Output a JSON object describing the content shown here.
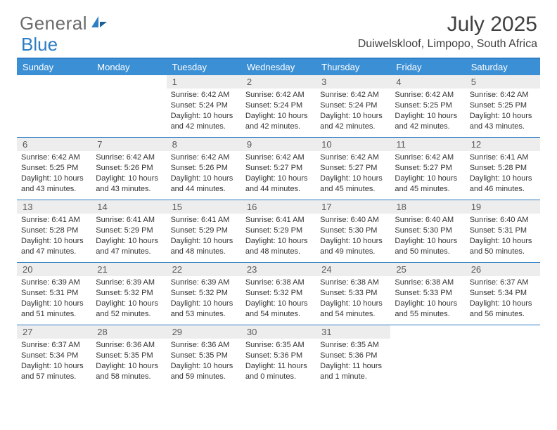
{
  "logo": {
    "text_gray": "General",
    "text_blue": "Blue"
  },
  "title": "July 2025",
  "location": "Duiwelskloof, Limpopo, South Africa",
  "colors": {
    "header_bar": "#3b8fd4",
    "border": "#2d7ec4",
    "daynum_bg": "#ededed",
    "text": "#333333",
    "title_text": "#404040"
  },
  "day_headers": [
    "Sunday",
    "Monday",
    "Tuesday",
    "Wednesday",
    "Thursday",
    "Friday",
    "Saturday"
  ],
  "weeks": [
    [
      {
        "n": "",
        "empty": true
      },
      {
        "n": "",
        "empty": true
      },
      {
        "n": "1",
        "sunrise": "6:42 AM",
        "sunset": "5:24 PM",
        "daylight": "10 hours and 42 minutes."
      },
      {
        "n": "2",
        "sunrise": "6:42 AM",
        "sunset": "5:24 PM",
        "daylight": "10 hours and 42 minutes."
      },
      {
        "n": "3",
        "sunrise": "6:42 AM",
        "sunset": "5:24 PM",
        "daylight": "10 hours and 42 minutes."
      },
      {
        "n": "4",
        "sunrise": "6:42 AM",
        "sunset": "5:25 PM",
        "daylight": "10 hours and 42 minutes."
      },
      {
        "n": "5",
        "sunrise": "6:42 AM",
        "sunset": "5:25 PM",
        "daylight": "10 hours and 43 minutes."
      }
    ],
    [
      {
        "n": "6",
        "sunrise": "6:42 AM",
        "sunset": "5:25 PM",
        "daylight": "10 hours and 43 minutes."
      },
      {
        "n": "7",
        "sunrise": "6:42 AM",
        "sunset": "5:26 PM",
        "daylight": "10 hours and 43 minutes."
      },
      {
        "n": "8",
        "sunrise": "6:42 AM",
        "sunset": "5:26 PM",
        "daylight": "10 hours and 44 minutes."
      },
      {
        "n": "9",
        "sunrise": "6:42 AM",
        "sunset": "5:27 PM",
        "daylight": "10 hours and 44 minutes."
      },
      {
        "n": "10",
        "sunrise": "6:42 AM",
        "sunset": "5:27 PM",
        "daylight": "10 hours and 45 minutes."
      },
      {
        "n": "11",
        "sunrise": "6:42 AM",
        "sunset": "5:27 PM",
        "daylight": "10 hours and 45 minutes."
      },
      {
        "n": "12",
        "sunrise": "6:41 AM",
        "sunset": "5:28 PM",
        "daylight": "10 hours and 46 minutes."
      }
    ],
    [
      {
        "n": "13",
        "sunrise": "6:41 AM",
        "sunset": "5:28 PM",
        "daylight": "10 hours and 47 minutes."
      },
      {
        "n": "14",
        "sunrise": "6:41 AM",
        "sunset": "5:29 PM",
        "daylight": "10 hours and 47 minutes."
      },
      {
        "n": "15",
        "sunrise": "6:41 AM",
        "sunset": "5:29 PM",
        "daylight": "10 hours and 48 minutes."
      },
      {
        "n": "16",
        "sunrise": "6:41 AM",
        "sunset": "5:29 PM",
        "daylight": "10 hours and 48 minutes."
      },
      {
        "n": "17",
        "sunrise": "6:40 AM",
        "sunset": "5:30 PM",
        "daylight": "10 hours and 49 minutes."
      },
      {
        "n": "18",
        "sunrise": "6:40 AM",
        "sunset": "5:30 PM",
        "daylight": "10 hours and 50 minutes."
      },
      {
        "n": "19",
        "sunrise": "6:40 AM",
        "sunset": "5:31 PM",
        "daylight": "10 hours and 50 minutes."
      }
    ],
    [
      {
        "n": "20",
        "sunrise": "6:39 AM",
        "sunset": "5:31 PM",
        "daylight": "10 hours and 51 minutes."
      },
      {
        "n": "21",
        "sunrise": "6:39 AM",
        "sunset": "5:32 PM",
        "daylight": "10 hours and 52 minutes."
      },
      {
        "n": "22",
        "sunrise": "6:39 AM",
        "sunset": "5:32 PM",
        "daylight": "10 hours and 53 minutes."
      },
      {
        "n": "23",
        "sunrise": "6:38 AM",
        "sunset": "5:32 PM",
        "daylight": "10 hours and 54 minutes."
      },
      {
        "n": "24",
        "sunrise": "6:38 AM",
        "sunset": "5:33 PM",
        "daylight": "10 hours and 54 minutes."
      },
      {
        "n": "25",
        "sunrise": "6:38 AM",
        "sunset": "5:33 PM",
        "daylight": "10 hours and 55 minutes."
      },
      {
        "n": "26",
        "sunrise": "6:37 AM",
        "sunset": "5:34 PM",
        "daylight": "10 hours and 56 minutes."
      }
    ],
    [
      {
        "n": "27",
        "sunrise": "6:37 AM",
        "sunset": "5:34 PM",
        "daylight": "10 hours and 57 minutes."
      },
      {
        "n": "28",
        "sunrise": "6:36 AM",
        "sunset": "5:35 PM",
        "daylight": "10 hours and 58 minutes."
      },
      {
        "n": "29",
        "sunrise": "6:36 AM",
        "sunset": "5:35 PM",
        "daylight": "10 hours and 59 minutes."
      },
      {
        "n": "30",
        "sunrise": "6:35 AM",
        "sunset": "5:36 PM",
        "daylight": "11 hours and 0 minutes."
      },
      {
        "n": "31",
        "sunrise": "6:35 AM",
        "sunset": "5:36 PM",
        "daylight": "11 hours and 1 minute."
      },
      {
        "n": "",
        "empty": true
      },
      {
        "n": "",
        "empty": true
      }
    ]
  ],
  "labels": {
    "sunrise": "Sunrise:",
    "sunset": "Sunset:",
    "daylight": "Daylight:"
  }
}
